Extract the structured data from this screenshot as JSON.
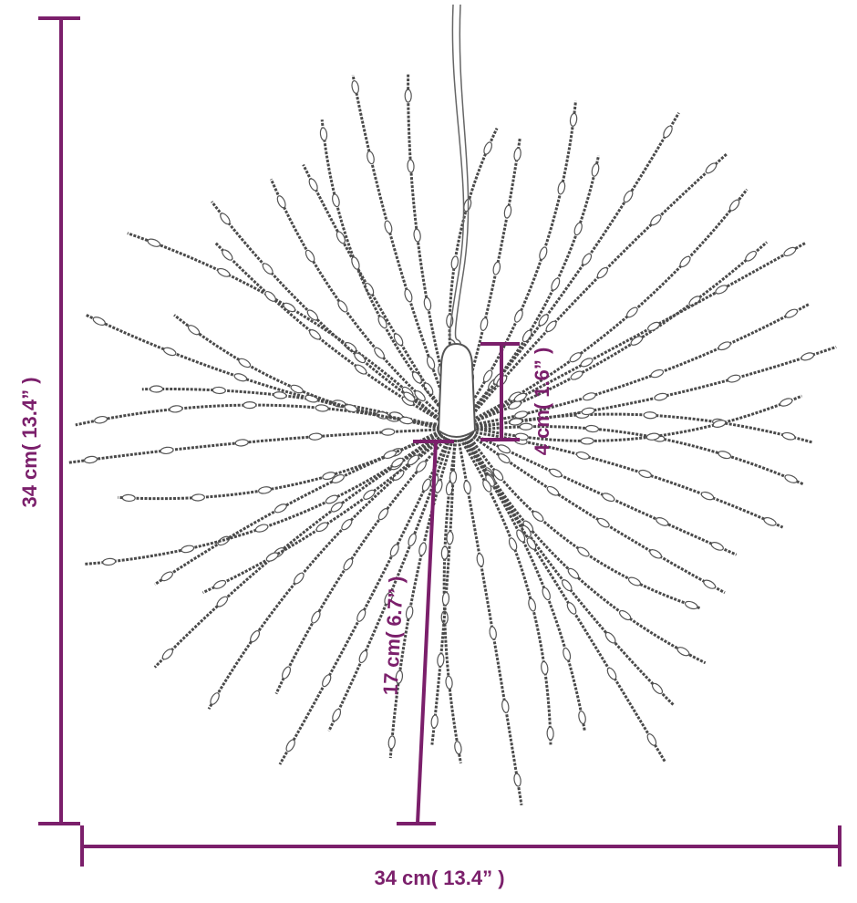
{
  "dimensions": {
    "height": "34 cm( 13.4” )",
    "width": "34 cm( 13.4” )",
    "canister": "4 cm( 1.6” )",
    "radius": "17 cm( 6.7” )"
  }
}
